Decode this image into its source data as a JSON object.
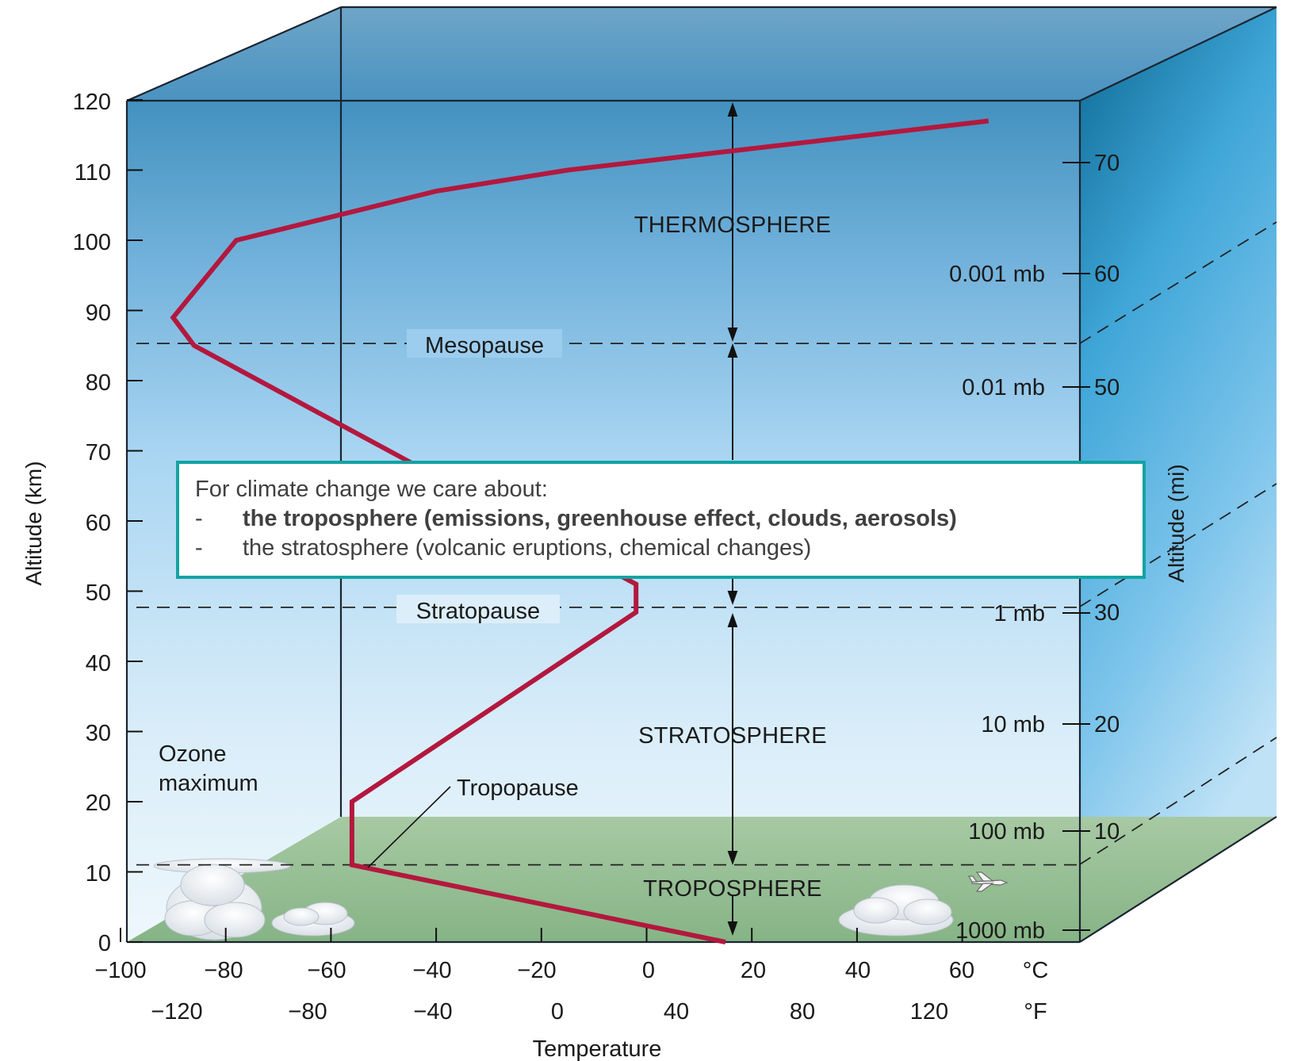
{
  "axes": {
    "left_title": "Altitude (km)",
    "right_title": "Altitude (mi)",
    "bottom_title": "Temperature",
    "km_ticks": [
      "0",
      "10",
      "20",
      "30",
      "40",
      "50",
      "60",
      "70",
      "80",
      "90",
      "100",
      "110",
      "120"
    ],
    "celsius_ticks": [
      "−100",
      "−80",
      "−60",
      "−40",
      "−20",
      "0",
      "20",
      "40",
      "60"
    ],
    "celsius_unit": "°C",
    "fahrenheit_ticks": [
      "−120",
      "−80",
      "−40",
      "0",
      "40",
      "80",
      "120"
    ],
    "fahrenheit_unit": "°F",
    "mile_ticks": [
      "10",
      "20",
      "30",
      "50",
      "60",
      "70"
    ]
  },
  "pressure_labels": [
    "1000 mb",
    "100 mb",
    "10 mb",
    "1 mb",
    "0.01 mb",
    "0.001 mb"
  ],
  "layers": {
    "thermosphere": "THERMOSPHERE",
    "stratosphere": "STRATOSPHERE",
    "troposphere": "TROPOSPHERE"
  },
  "boundaries": {
    "mesopause": "Mesopause",
    "stratopause": "Stratopause",
    "tropopause": "Tropopause"
  },
  "ozone_label": [
    "Ozone",
    "maximum"
  ],
  "callout": {
    "heading": "For climate change we care about:",
    "items": [
      {
        "text": "the troposphere (emissions, greenhouse effect, clouds, aerosols)",
        "bold": true
      },
      {
        "text": "the stratosphere (volcanic eruptions, chemical changes)",
        "bold": false
      }
    ]
  },
  "temperature_profile": {
    "units": {
      "x": "°C",
      "y": "km"
    },
    "points": [
      [
        15,
        0
      ],
      [
        -56,
        11
      ],
      [
        -56,
        20
      ],
      [
        -2,
        47
      ],
      [
        -2,
        51
      ],
      [
        -86,
        85
      ],
      [
        -90,
        89
      ],
      [
        -78,
        100
      ],
      [
        -40,
        107
      ],
      [
        -15,
        110
      ],
      [
        65,
        117
      ]
    ]
  },
  "colors": {
    "profile_line": "#b3183e",
    "callout_border": "#12a3a3",
    "ground": "#8db98c"
  }
}
